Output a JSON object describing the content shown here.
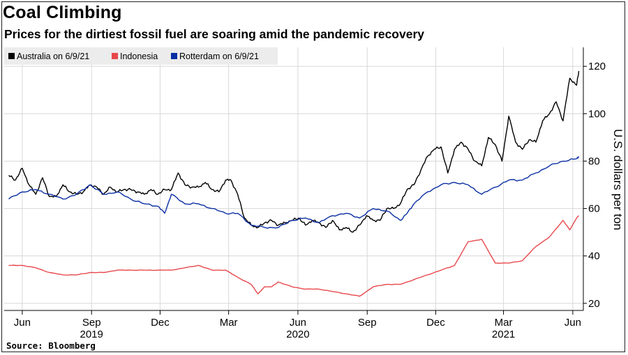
{
  "title": "Coal Climbing",
  "subtitle": "Prices for the dirtiest fossil fuel are soaring amid the pandemic recovery",
  "source": "Source: Bloomberg",
  "colors": {
    "australia": "#000000",
    "indonesia": "#e8484c",
    "rotterdam": "#0a2ea3",
    "grid": "#d8d8d8",
    "legend_bg": "#ececec"
  },
  "chart_data": {
    "type": "line",
    "ylabel": "U.S. dollars per ton",
    "ylim": [
      17,
      128
    ],
    "y_ticks": [
      20,
      40,
      60,
      80,
      100,
      120
    ],
    "y_tick_labels": [
      "20",
      "40",
      "60",
      "80",
      "100",
      "120"
    ],
    "x_ticks": [
      {
        "date": "2019-06-01",
        "month": "Jun",
        "year": ""
      },
      {
        "date": "2019-09-01",
        "month": "Sep",
        "year": "2019"
      },
      {
        "date": "2019-12-01",
        "month": "Dec",
        "year": ""
      },
      {
        "date": "2020-03-01",
        "month": "Mar",
        "year": ""
      },
      {
        "date": "2020-06-01",
        "month": "Jun",
        "year": "2020"
      },
      {
        "date": "2020-09-01",
        "month": "Sep",
        "year": ""
      },
      {
        "date": "2020-12-01",
        "month": "Dec",
        "year": ""
      },
      {
        "date": "2021-03-01",
        "month": "Mar",
        "year": "2021"
      },
      {
        "date": "2021-06-01",
        "month": "Jun",
        "year": ""
      }
    ],
    "grid": true,
    "legend_position": "top-left",
    "series": [
      {
        "name": "Australia on 6/9/21",
        "x": [
          "2019-05-14",
          "2019-05-23",
          "2019-06-01",
          "2019-06-10",
          "2019-06-19",
          "2019-06-28",
          "2019-07-07",
          "2019-07-16",
          "2019-07-25",
          "2019-08-03",
          "2019-08-12",
          "2019-08-21",
          "2019-08-30",
          "2019-09-08",
          "2019-09-17",
          "2019-09-26",
          "2019-10-05",
          "2019-10-14",
          "2019-10-23",
          "2019-11-01",
          "2019-11-10",
          "2019-11-19",
          "2019-11-28",
          "2019-12-07",
          "2019-12-16",
          "2019-12-25",
          "2020-01-03",
          "2020-01-12",
          "2020-01-21",
          "2020-01-30",
          "2020-02-08",
          "2020-02-17",
          "2020-02-26",
          "2020-03-04",
          "2020-03-13",
          "2020-03-22",
          "2020-03-31",
          "2020-04-09",
          "2020-04-18",
          "2020-04-27",
          "2020-05-06",
          "2020-05-15",
          "2020-05-24",
          "2020-06-02",
          "2020-06-11",
          "2020-06-20",
          "2020-06-29",
          "2020-07-08",
          "2020-07-17",
          "2020-07-26",
          "2020-08-04",
          "2020-08-13",
          "2020-08-22",
          "2020-08-31",
          "2020-09-09",
          "2020-09-18",
          "2020-09-27",
          "2020-10-06",
          "2020-10-15",
          "2020-10-24",
          "2020-11-02",
          "2020-11-11",
          "2020-11-20",
          "2020-11-29",
          "2020-12-08",
          "2020-12-17",
          "2020-12-26",
          "2021-01-04",
          "2021-01-13",
          "2021-01-22",
          "2021-01-31",
          "2021-02-09",
          "2021-02-18",
          "2021-02-27",
          "2021-03-08",
          "2021-03-17",
          "2021-03-26",
          "2021-04-04",
          "2021-04-13",
          "2021-04-22",
          "2021-05-01",
          "2021-05-10",
          "2021-05-19",
          "2021-05-28",
          "2021-06-06",
          "2021-06-09"
        ],
        "y": [
          74,
          72,
          77,
          70,
          66,
          73,
          65,
          65,
          70,
          67,
          66,
          67,
          70,
          69,
          66,
          69,
          67,
          68,
          68,
          67,
          66,
          68,
          66,
          68,
          68,
          75,
          70,
          69,
          69,
          71,
          68,
          67,
          72,
          72,
          66,
          56,
          53,
          52,
          54,
          55,
          53,
          54,
          55,
          56,
          53,
          55,
          54,
          52,
          55,
          51,
          52,
          50,
          53,
          57,
          55,
          55,
          60,
          60,
          62,
          68,
          70,
          76,
          82,
          85,
          86,
          75,
          85,
          88,
          85,
          80,
          78,
          90,
          87,
          80,
          99,
          88,
          85,
          89,
          88,
          97,
          100,
          105,
          97,
          115,
          112,
          118
        ]
      },
      {
        "name": "Indonesia",
        "x": [
          "2019-05-14",
          "2019-06-01",
          "2019-06-19",
          "2019-07-07",
          "2019-07-25",
          "2019-08-12",
          "2019-08-30",
          "2019-09-17",
          "2019-10-05",
          "2019-10-23",
          "2019-11-10",
          "2019-11-28",
          "2019-12-16",
          "2020-01-03",
          "2020-01-21",
          "2020-02-08",
          "2020-02-26",
          "2020-03-13",
          "2020-03-31",
          "2020-04-09",
          "2020-04-18",
          "2020-04-27",
          "2020-05-06",
          "2020-05-24",
          "2020-06-11",
          "2020-06-29",
          "2020-07-17",
          "2020-08-04",
          "2020-08-22",
          "2020-09-09",
          "2020-09-27",
          "2020-10-15",
          "2020-11-02",
          "2020-11-20",
          "2020-12-08",
          "2020-12-26",
          "2021-01-13",
          "2021-01-31",
          "2021-02-18",
          "2021-03-08",
          "2021-03-26",
          "2021-04-13",
          "2021-05-01",
          "2021-05-19",
          "2021-05-28",
          "2021-06-06",
          "2021-06-09"
        ],
        "y": [
          36,
          36,
          35,
          33,
          32,
          32,
          33,
          33,
          34,
          34,
          34,
          34,
          34,
          35,
          36,
          34,
          34,
          31,
          28,
          24,
          27,
          27,
          29,
          27,
          26,
          26,
          25,
          24,
          23,
          27,
          28,
          28,
          30,
          32,
          34,
          36,
          46,
          47,
          37,
          37,
          38,
          44,
          48,
          55,
          51,
          56,
          57
        ]
      },
      {
        "name": "Rotterdam on 6/9/21",
        "x": [
          "2019-05-14",
          "2019-06-01",
          "2019-06-19",
          "2019-07-07",
          "2019-07-25",
          "2019-08-12",
          "2019-08-30",
          "2019-09-17",
          "2019-10-05",
          "2019-10-23",
          "2019-11-10",
          "2019-11-28",
          "2019-12-07",
          "2019-12-16",
          "2020-01-03",
          "2020-01-21",
          "2020-02-08",
          "2020-02-26",
          "2020-03-13",
          "2020-03-31",
          "2020-04-18",
          "2020-05-06",
          "2020-05-24",
          "2020-06-11",
          "2020-06-29",
          "2020-07-17",
          "2020-08-04",
          "2020-08-22",
          "2020-09-09",
          "2020-09-27",
          "2020-10-15",
          "2020-10-24",
          "2020-11-02",
          "2020-11-20",
          "2020-12-08",
          "2020-12-26",
          "2021-01-13",
          "2021-01-31",
          "2021-02-18",
          "2021-03-08",
          "2021-03-26",
          "2021-04-13",
          "2021-05-01",
          "2021-05-19",
          "2021-06-06",
          "2021-06-09"
        ],
        "y": [
          64,
          67,
          68,
          66,
          64,
          66,
          70,
          66,
          67,
          64,
          62,
          61,
          58,
          66,
          62,
          62,
          60,
          58,
          58,
          53,
          52,
          52,
          55,
          56,
          54,
          57,
          58,
          56,
          60,
          59,
          55,
          58,
          62,
          67,
          70,
          71,
          70,
          66,
          69,
          72,
          72,
          75,
          78,
          80,
          81,
          82
        ]
      }
    ]
  }
}
